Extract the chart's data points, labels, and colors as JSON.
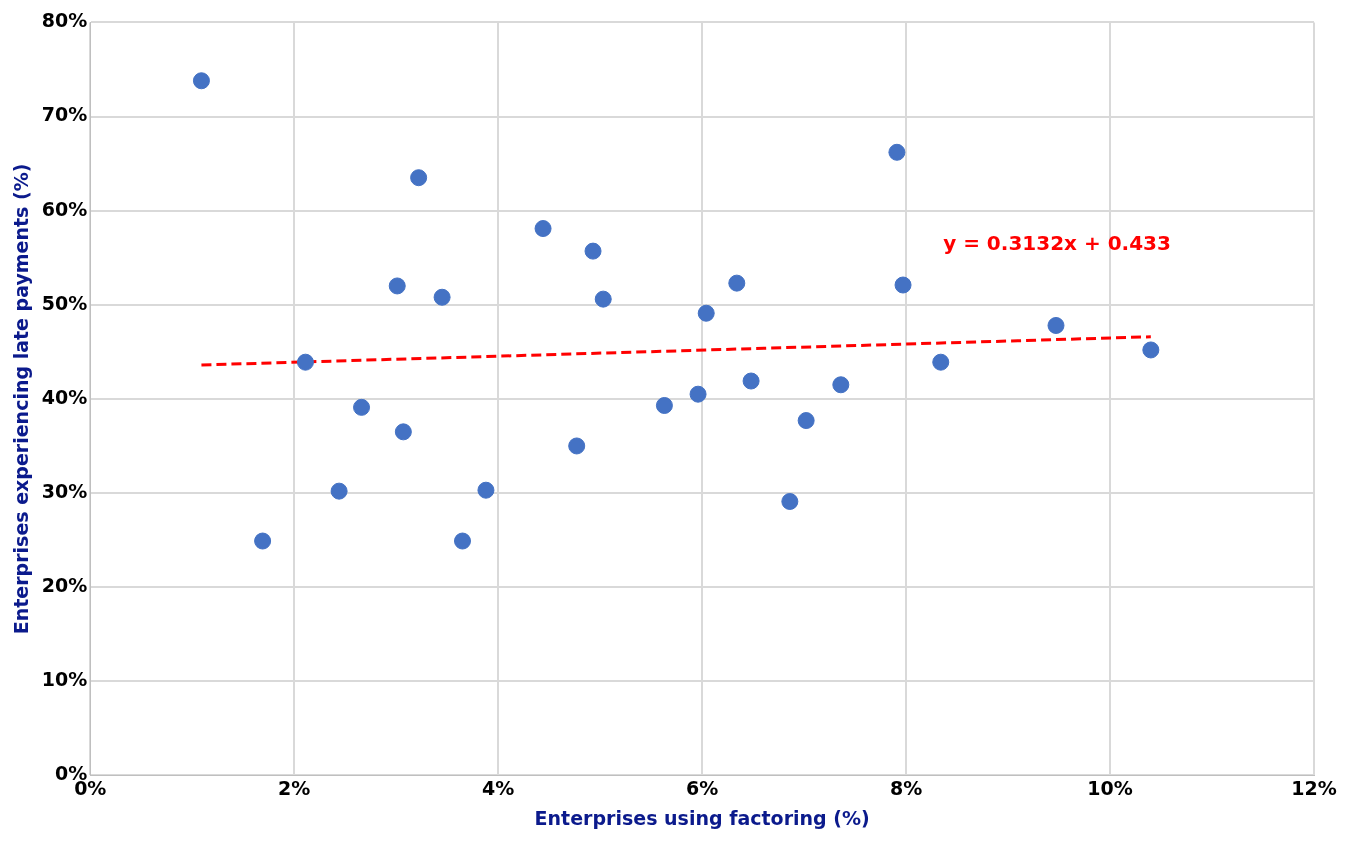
{
  "chart_data": {
    "type": "scatter",
    "xlabel": "Enterprises using factoring (%)",
    "ylabel": "Enterprises experiencing late payments (%)",
    "xlim": [
      0,
      12
    ],
    "xticks": [
      {
        "value": 0,
        "label": "0%"
      },
      {
        "value": 2,
        "label": "2%"
      },
      {
        "value": 4,
        "label": "4%"
      },
      {
        "value": 6,
        "label": "6%"
      },
      {
        "value": 8,
        "label": "8%"
      },
      {
        "value": 10,
        "label": "10%"
      },
      {
        "value": 12,
        "label": "12%"
      }
    ],
    "ylim": [
      0,
      80
    ],
    "yticks": [
      {
        "value": 0,
        "label": "0%"
      },
      {
        "value": 10,
        "label": "10%"
      },
      {
        "value": 20,
        "label": "20%"
      },
      {
        "value": 30,
        "label": "30%"
      },
      {
        "value": 40,
        "label": "40%"
      },
      {
        "value": 50,
        "label": "50%"
      },
      {
        "value": 60,
        "label": "60%"
      },
      {
        "value": 70,
        "label": "70%"
      },
      {
        "value": 80,
        "label": "80%"
      }
    ],
    "grid": true,
    "legend": false,
    "marker": "circle",
    "series": [
      {
        "type": "scatter",
        "color": "#4472c4",
        "x": [
          1.09,
          1.69,
          2.11,
          2.44,
          2.66,
          3.01,
          3.07,
          3.22,
          3.45,
          3.65,
          3.88,
          4.44,
          4.77,
          4.93,
          5.03,
          5.63,
          5.96,
          6.04,
          6.34,
          6.48,
          6.86,
          7.02,
          7.36,
          7.91,
          7.97,
          8.34,
          9.47,
          10.4
        ],
        "values": [
          73.8,
          24.9,
          43.9,
          30.2,
          39.1,
          52.0,
          36.5,
          63.5,
          50.8,
          24.9,
          30.3,
          58.1,
          35.0,
          55.7,
          50.6,
          39.3,
          40.5,
          49.1,
          52.3,
          41.9,
          29.1,
          37.7,
          41.5,
          66.2,
          52.1,
          43.9,
          47.8,
          45.2
        ]
      },
      {
        "type": "line",
        "color": "#ff0000",
        "line_style": "dashed",
        "marker": "none",
        "x": [
          1.09,
          10.4
        ],
        "values": [
          43.6,
          46.6
        ]
      }
    ],
    "annotations": [
      "y = 0.3132x + 0.433"
    ]
  }
}
